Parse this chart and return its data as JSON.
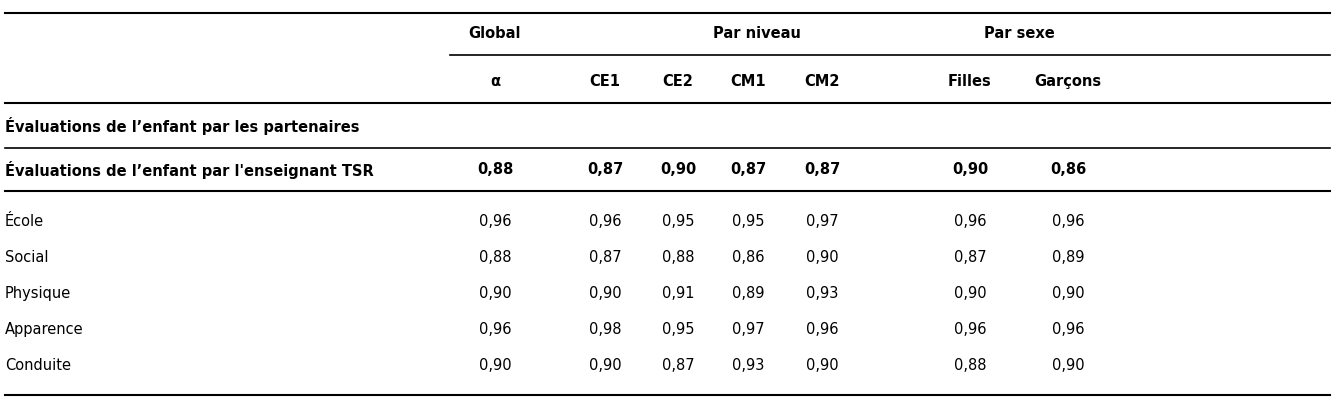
{
  "header_group1": "Global",
  "header_group2": "Par niveau",
  "header_group3": "Par sexe",
  "col_headers": [
    "α",
    "CE1",
    "CE2",
    "CM1",
    "CM2",
    "Filles",
    "Garçons"
  ],
  "section_header1": "Évaluations de l’enfant par les partenaires",
  "section_header2": "Évaluations de l’enfant par l'enseignant TSR",
  "section2_values": [
    "0,88",
    "0,87",
    "0,90",
    "0,87",
    "0,87",
    "0,90",
    "0,86"
  ],
  "rows": [
    [
      "École",
      "0,96",
      "0,96",
      "0,95",
      "0,95",
      "0,97",
      "0,96",
      "0,96"
    ],
    [
      "Social",
      "0,88",
      "0,87",
      "0,88",
      "0,86",
      "0,90",
      "0,87",
      "0,89"
    ],
    [
      "Physique",
      "0,90",
      "0,90",
      "0,91",
      "0,89",
      "0,93",
      "0,90",
      "0,90"
    ],
    [
      "Apparence",
      "0,96",
      "0,98",
      "0,95",
      "0,97",
      "0,96",
      "0,96",
      "0,96"
    ],
    [
      "Conduite",
      "0,90",
      "0,90",
      "0,87",
      "0,93",
      "0,90",
      "0,88",
      "0,90"
    ]
  ],
  "bg_color": "#ffffff",
  "text_color": "#000000",
  "font_size": 10.5
}
